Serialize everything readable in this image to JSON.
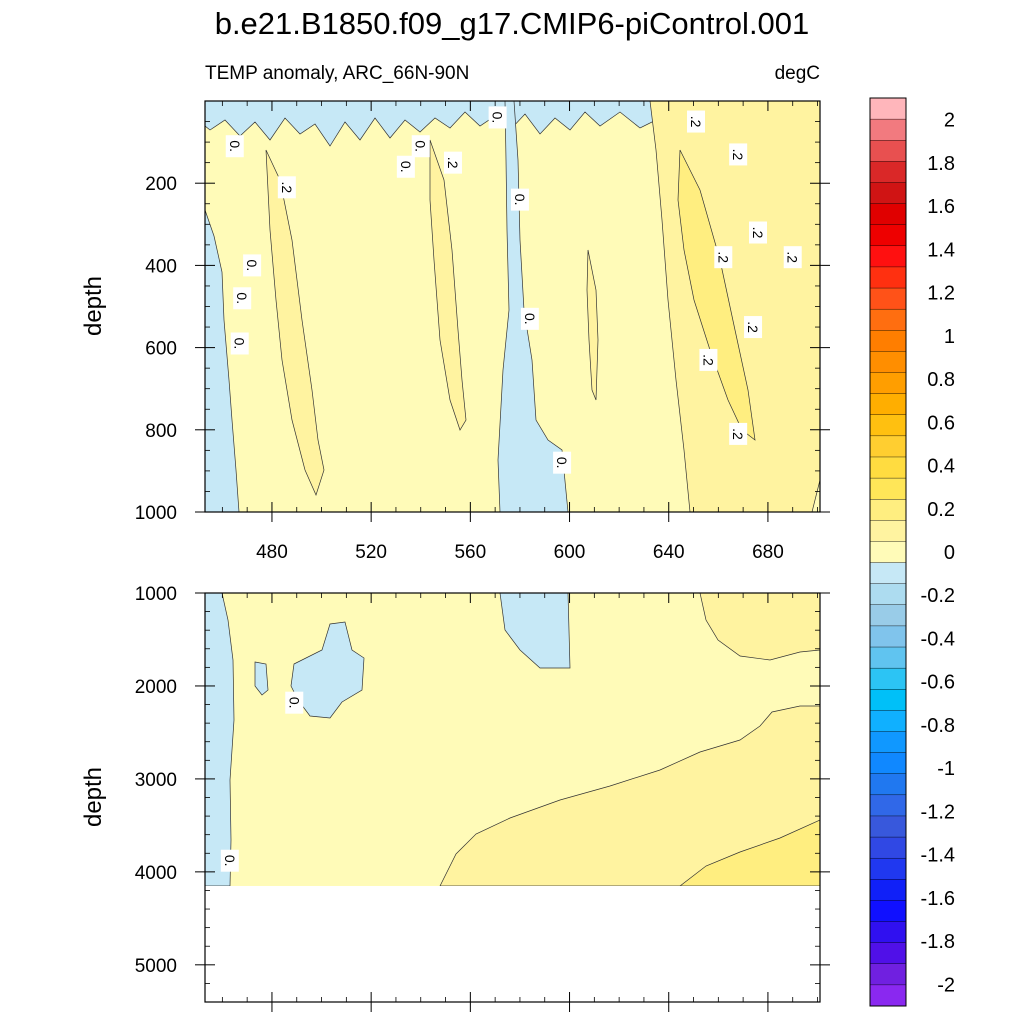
{
  "chart_data": {
    "type": "heatmap",
    "title": "b.e21.B1850.f09_g17.CMIP6-piControl.001",
    "subtitle_left": "TEMP anomaly, ARC_66N-90N",
    "units": "degC",
    "xlim": [
      453,
      701
    ],
    "x_tick_labels": [
      "480",
      "520",
      "560",
      "600",
      "640",
      "680"
    ],
    "x_ticks": [
      480,
      520,
      560,
      600,
      640,
      680
    ],
    "colorbar": {
      "labels": [
        "2",
        "1.8",
        "1.6",
        "1.4",
        "1.2",
        "1",
        "0.8",
        "0.6",
        "0.4",
        "0.2",
        "0",
        "-0.2",
        "-0.4",
        "-0.6",
        "-0.8",
        "-1",
        "-1.2",
        "-1.4",
        "-1.6",
        "-1.8",
        "-2"
      ],
      "label_values": [
        2,
        1.8,
        1.6,
        1.4,
        1.2,
        1,
        0.8,
        0.6,
        0.4,
        0.2,
        0,
        -0.2,
        -0.4,
        -0.6,
        -0.8,
        -1,
        -1.2,
        -1.4,
        -1.6,
        -1.8,
        -2
      ],
      "min": -2.1,
      "max": 2.1,
      "colors": [
        "#FFB6BB",
        "#F27A7F",
        "#E85050",
        "#DA2828",
        "#D01414",
        "#E00000",
        "#EE0000",
        "#FF1010",
        "#FF3010",
        "#FF5218",
        "#FF6E10",
        "#FF7E00",
        "#FF8E00",
        "#FF9E00",
        "#FFAE00",
        "#FFC010",
        "#FFCE30",
        "#FFDC40",
        "#FFE658",
        "#FFEE80",
        "#FFF3A0",
        "#FFFBB8",
        "#C6E8F6",
        "#ADDCF0",
        "#99CCE8",
        "#80C4EC",
        "#60C4F0",
        "#2CC4F4",
        "#00C0F8",
        "#10B0FF",
        "#1098FF",
        "#1088FF",
        "#2078F0",
        "#3068E8",
        "#3858DC",
        "#3048E4",
        "#2038F0",
        "#1020F8",
        "#1010FF",
        "#3010F0",
        "#5010E8",
        "#7020E0",
        "#8A28F0"
      ]
    },
    "panels": [
      {
        "name": "upper",
        "ylabel": "depth",
        "ylim": [
          0,
          1000
        ],
        "y_tick_labels": [
          "200",
          "400",
          "600",
          "800",
          "1000"
        ],
        "y_ticks": [
          200,
          400,
          600,
          800,
          1000
        ],
        "contour_labels": [
          {
            "text": "0.",
            "x": 465,
            "y": 110
          },
          {
            "text": "0.",
            "x": 472,
            "y": 400
          },
          {
            "text": "0.",
            "x": 468,
            "y": 480
          },
          {
            "text": "0.",
            "x": 467,
            "y": 590
          },
          {
            "text": "0.",
            "x": 534,
            "y": 160
          },
          {
            "text": "0.",
            "x": 540,
            "y": 110
          },
          {
            "text": "0.",
            "x": 571,
            "y": 40
          },
          {
            "text": "0.",
            "x": 580,
            "y": 240
          },
          {
            "text": "0.",
            "x": 584,
            "y": 530
          },
          {
            "text": "0.",
            "x": 597,
            "y": 880
          },
          {
            "text": ".2",
            "x": 486,
            "y": 210
          },
          {
            "text": ".2",
            "x": 553,
            "y": 150
          },
          {
            "text": ".2",
            "x": 651,
            "y": 50
          },
          {
            "text": ".2",
            "x": 668,
            "y": 130
          },
          {
            "text": ".2",
            "x": 662,
            "y": 380
          },
          {
            "text": ".2",
            "x": 676,
            "y": 320
          },
          {
            "text": ".2",
            "x": 690,
            "y": 380
          },
          {
            "text": ".2",
            "x": 674,
            "y": 550
          },
          {
            "text": ".2",
            "x": 656,
            "y": 630
          },
          {
            "text": ".2",
            "x": 668,
            "y": 810
          }
        ]
      },
      {
        "name": "lower",
        "ylabel": "depth",
        "ylim": [
          1000,
          5400
        ],
        "y_tick_labels": [
          "1000",
          "2000",
          "3000",
          "4000",
          "5000"
        ],
        "y_ticks": [
          1000,
          2000,
          3000,
          4000,
          5000
        ],
        "data_bottom_depth": 4120,
        "contour_labels": [
          {
            "text": "0.",
            "x": 489,
            "y": 2180
          },
          {
            "text": "0.",
            "x": 463,
            "y": 3880
          }
        ]
      }
    ]
  }
}
